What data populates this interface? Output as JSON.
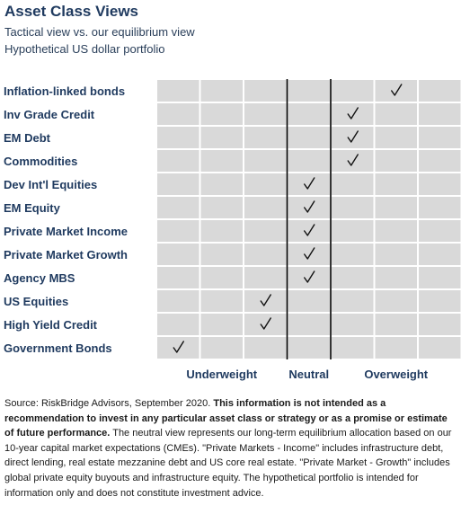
{
  "header": {
    "title": "Asset Class Views",
    "subtitle_1": "Tactical view vs. our equilibrium view",
    "subtitle_2": "Hypothetical US dollar portfolio"
  },
  "chart_data": {
    "type": "table",
    "columns": 7,
    "rows": [
      {
        "label": "Inflation-linked bonds",
        "position": 6
      },
      {
        "label": "Inv Grade Credit",
        "position": 5
      },
      {
        "label": "EM Debt",
        "position": 5
      },
      {
        "label": "Commodities",
        "position": 5
      },
      {
        "label": "Dev Int'l Equities",
        "position": 4
      },
      {
        "label": "EM Equity",
        "position": 4
      },
      {
        "label": "Private Market Income",
        "position": 4
      },
      {
        "label": "Private Market Growth",
        "position": 4
      },
      {
        "label": "Agency MBS",
        "position": 4
      },
      {
        "label": "US Equities",
        "position": 3
      },
      {
        "label": "High Yield Credit",
        "position": 3
      },
      {
        "label": "Government Bonds",
        "position": 1
      }
    ],
    "zones": [
      "Underweight",
      "Neutral",
      "Overweight"
    ],
    "check_glyph": "✓",
    "colors": {
      "cell": "#d9d9d9",
      "label": "#1f3a5f",
      "divider": "#000000"
    }
  },
  "footnote": {
    "source": "Source: RiskBridge Advisors, September 2020.",
    "disclaimer": "This information is not intended as a recommendation to invest in any particular asset class or strategy or as a promise or estimate of future performance.",
    "body": "The neutral view represents our long-term equilibrium allocation based on our 10-year capital market expectations (CMEs).  \"Private Markets - Income\" includes infrastructure debt, direct lending, real estate mezzanine debt and US core real estate.  \"Private Market - Growth\" includes global private equity buyouts and infrastructure equity.  The hypothetical portfolio is intended for information only and does not constitute investment advice."
  }
}
